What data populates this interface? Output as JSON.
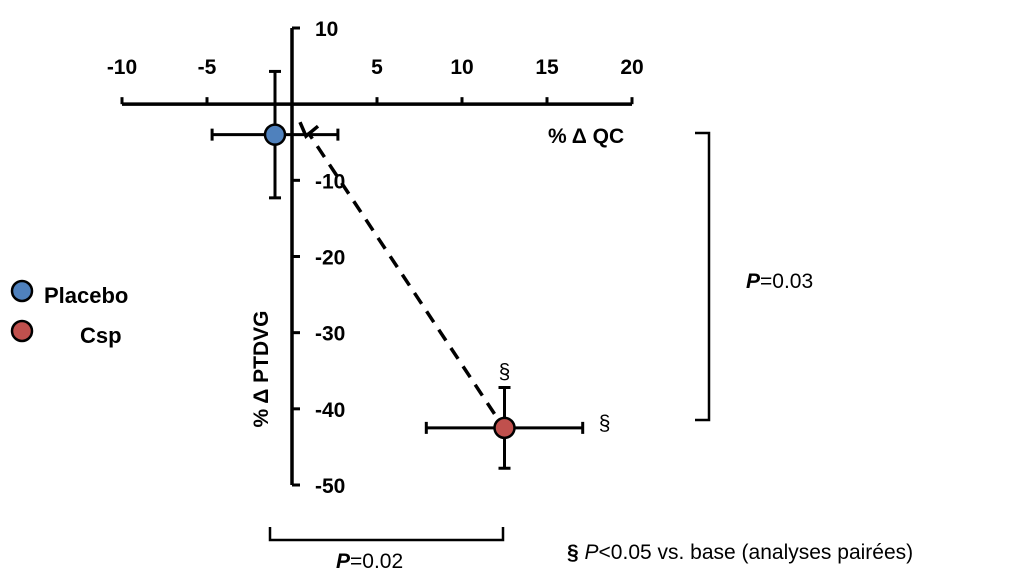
{
  "chart_data": {
    "type": "scatter",
    "title": "",
    "xlabel": "% Δ QC",
    "ylabel": "% Δ PTDVG",
    "xlim": [
      -10,
      20
    ],
    "ylim": [
      -50,
      10
    ],
    "x_ticks": [
      "-10",
      "-5",
      "5",
      "10",
      "15",
      "20"
    ],
    "y_ticks": [
      "10",
      "-10",
      "-20",
      "-30",
      "-40",
      "-50"
    ],
    "grid": false,
    "legend_position": "left",
    "series": [
      {
        "name": "Placebo",
        "color": "#4F81BD",
        "x": -1,
        "y": -4,
        "x_err": 3.7,
        "y_err": 8.3
      },
      {
        "name": "Csp",
        "color": "#C0504D",
        "x": 12.5,
        "y": -42.5,
        "x_err": 4.6,
        "y_err": 5.3
      }
    ],
    "annotations": {
      "section_mark": "§",
      "p_vertical": {
        "italic": "P",
        "value": "=0.03"
      },
      "p_horizontal": {
        "italic": "P",
        "value": "=0.02"
      },
      "footnote": {
        "mark": "§",
        "italic": "P",
        "rest": "<0.05 vs. base (analyses pairées)"
      }
    }
  }
}
